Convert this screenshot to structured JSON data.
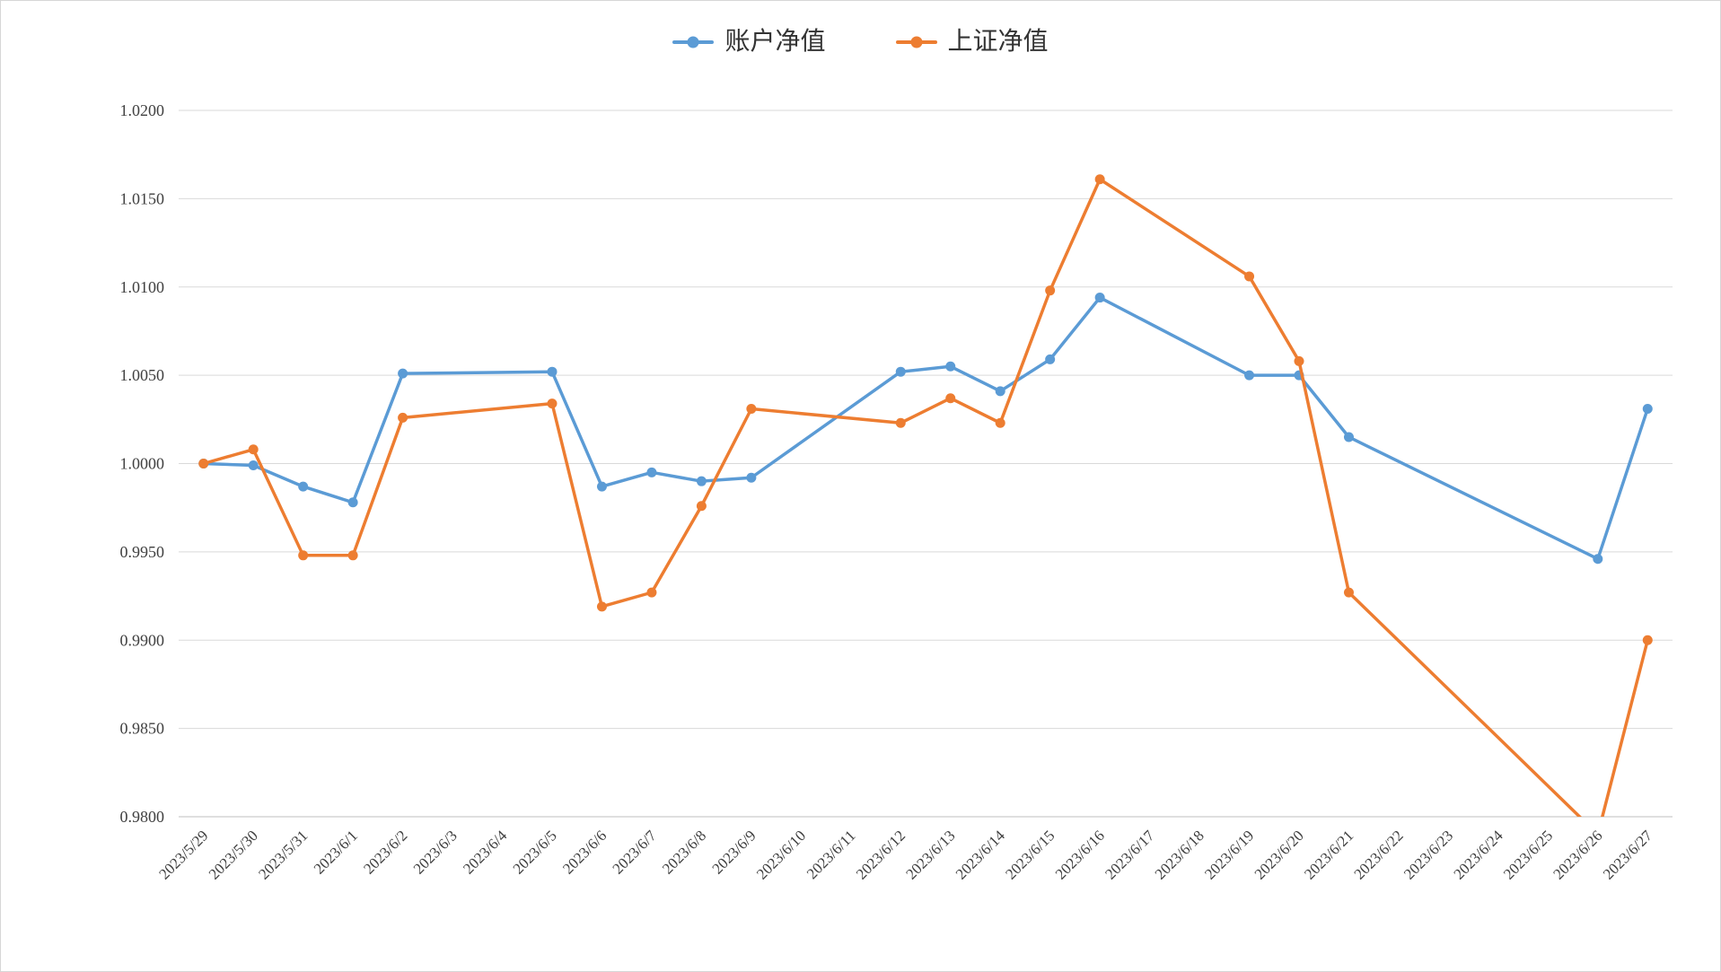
{
  "chart_data": {
    "type": "line",
    "title": "",
    "xlabel": "",
    "ylabel": "",
    "ylim": [
      0.98,
      1.02
    ],
    "y_tick_labels": [
      "0.9800",
      "0.9850",
      "0.9900",
      "0.9950",
      "1.0000",
      "1.0050",
      "1.0100",
      "1.0150",
      "1.0200"
    ],
    "grid": true,
    "legend_position": "top-center",
    "gridline_color": "#d9d9d9",
    "axis_line_color": "#bfbfbf",
    "categories": [
      "2023/5/29",
      "2023/5/30",
      "2023/5/31",
      "2023/6/1",
      "2023/6/2",
      "2023/6/3",
      "2023/6/4",
      "2023/6/5",
      "2023/6/6",
      "2023/6/7",
      "2023/6/8",
      "2023/6/9",
      "2023/6/10",
      "2023/6/11",
      "2023/6/12",
      "2023/6/13",
      "2023/6/14",
      "2023/6/15",
      "2023/6/16",
      "2023/6/17",
      "2023/6/18",
      "2023/6/19",
      "2023/6/20",
      "2023/6/21",
      "2023/6/22",
      "2023/6/23",
      "2023/6/24",
      "2023/6/25",
      "2023/6/26",
      "2023/6/27"
    ],
    "series": [
      {
        "name": "账户净值",
        "color": "#5B9BD5",
        "values": [
          1.0,
          0.9999,
          0.9987,
          0.9978,
          1.0051,
          null,
          null,
          1.0052,
          0.9987,
          0.9995,
          0.999,
          0.9992,
          null,
          null,
          1.0052,
          1.0055,
          1.0041,
          1.0059,
          1.0094,
          null,
          null,
          1.005,
          1.005,
          1.0015,
          null,
          null,
          null,
          null,
          0.9946,
          1.0031
        ]
      },
      {
        "name": "上证净值",
        "color": "#ED7D31",
        "values": [
          1.0,
          1.0008,
          0.9948,
          0.9948,
          1.0026,
          null,
          null,
          1.0034,
          0.9919,
          0.9927,
          0.9976,
          1.0031,
          null,
          null,
          1.0023,
          1.0037,
          1.0023,
          1.0098,
          1.0161,
          null,
          null,
          1.0106,
          1.0058,
          0.9927,
          null,
          null,
          null,
          null,
          0.979,
          0.99
        ]
      }
    ]
  }
}
